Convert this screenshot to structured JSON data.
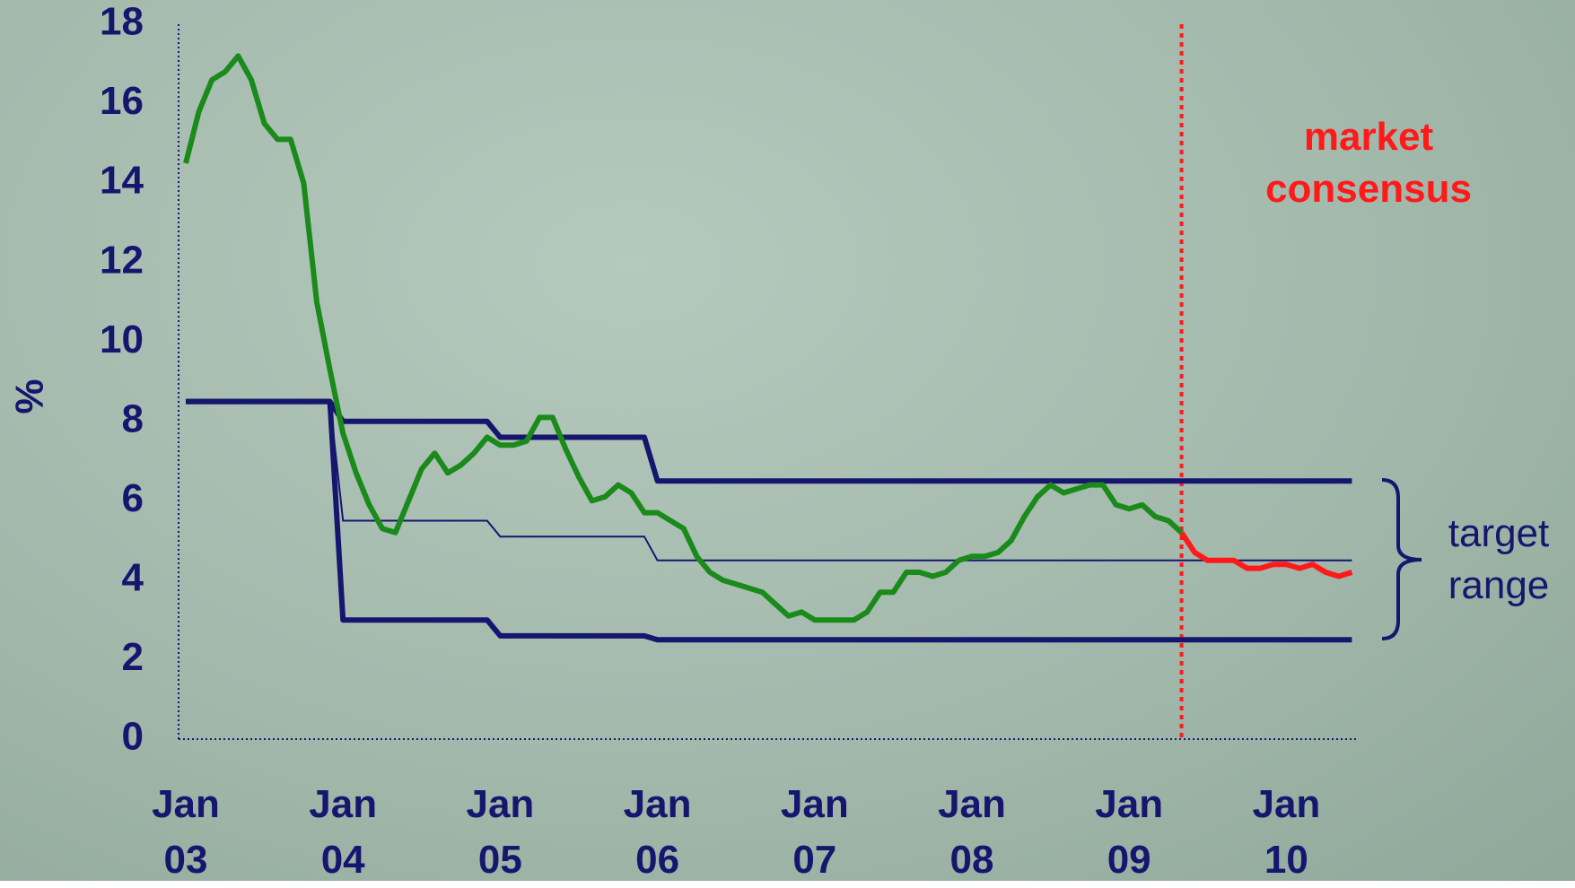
{
  "chart_data": {
    "type": "line",
    "y_label": "%",
    "x": [
      "2003-01",
      "2003-02",
      "2003-03",
      "2003-04",
      "2003-05",
      "2003-06",
      "2003-07",
      "2003-08",
      "2003-09",
      "2003-10",
      "2003-11",
      "2003-12",
      "2004-01",
      "2004-02",
      "2004-03",
      "2004-04",
      "2004-05",
      "2004-06",
      "2004-07",
      "2004-08",
      "2004-09",
      "2004-10",
      "2004-11",
      "2004-12",
      "2005-01",
      "2005-02",
      "2005-03",
      "2005-04",
      "2005-05",
      "2005-06",
      "2005-07",
      "2005-08",
      "2005-09",
      "2005-10",
      "2005-11",
      "2005-12",
      "2006-01",
      "2006-02",
      "2006-03",
      "2006-04",
      "2006-05",
      "2006-06",
      "2006-07",
      "2006-08",
      "2006-09",
      "2006-10",
      "2006-11",
      "2006-12",
      "2007-01",
      "2007-02",
      "2007-03",
      "2007-04",
      "2007-05",
      "2007-06",
      "2007-07",
      "2007-08",
      "2007-09",
      "2007-10",
      "2007-11",
      "2007-12",
      "2008-01",
      "2008-02",
      "2008-03",
      "2008-04",
      "2008-05",
      "2008-06",
      "2008-07",
      "2008-08",
      "2008-09",
      "2008-10",
      "2008-11",
      "2008-12",
      "2009-01",
      "2009-02",
      "2009-03",
      "2009-04",
      "2009-05",
      "2009-06",
      "2009-07",
      "2009-08",
      "2009-09",
      "2009-10",
      "2009-11",
      "2009-12",
      "2010-01",
      "2010-02",
      "2010-03",
      "2010-04",
      "2010-05",
      "2010-06"
    ],
    "series": [
      {
        "color": "#16166e",
        "width": 6,
        "values": [
          8.5,
          8.5,
          8.5,
          8.5,
          8.5,
          8.5,
          8.5,
          8.5,
          8.5,
          8.5,
          8.5,
          8.5,
          8,
          8,
          8,
          8,
          8,
          8,
          8,
          8,
          8,
          8,
          8,
          8,
          7.6,
          7.6,
          7.6,
          7.6,
          7.6,
          7.6,
          7.6,
          7.6,
          7.6,
          7.6,
          7.6,
          7.6,
          6.5,
          6.5,
          6.5,
          6.5,
          6.5,
          6.5,
          6.5,
          6.5,
          6.5,
          6.5,
          6.5,
          6.5,
          6.5,
          6.5,
          6.5,
          6.5,
          6.5,
          6.5,
          6.5,
          6.5,
          6.5,
          6.5,
          6.5,
          6.5,
          6.5,
          6.5,
          6.5,
          6.5,
          6.5,
          6.5,
          6.5,
          6.5,
          6.5,
          6.5,
          6.5,
          6.5,
          6.5,
          6.5,
          6.5,
          6.5,
          6.5,
          6.5,
          6.5,
          6.5,
          6.5,
          6.5,
          6.5,
          6.5,
          6.5,
          6.5,
          6.5,
          6.5,
          6.5,
          6.5
        ]
      },
      {
        "color": "#16166e",
        "width": 2,
        "values": [
          8.5,
          8.5,
          8.5,
          8.5,
          8.5,
          8.5,
          8.5,
          8.5,
          8.5,
          8.5,
          8.5,
          8.5,
          5.5,
          5.5,
          5.5,
          5.5,
          5.5,
          5.5,
          5.5,
          5.5,
          5.5,
          5.5,
          5.5,
          5.5,
          5.1,
          5.1,
          5.1,
          5.1,
          5.1,
          5.1,
          5.1,
          5.1,
          5.1,
          5.1,
          5.1,
          5.1,
          4.5,
          4.5,
          4.5,
          4.5,
          4.5,
          4.5,
          4.5,
          4.5,
          4.5,
          4.5,
          4.5,
          4.5,
          4.5,
          4.5,
          4.5,
          4.5,
          4.5,
          4.5,
          4.5,
          4.5,
          4.5,
          4.5,
          4.5,
          4.5,
          4.5,
          4.5,
          4.5,
          4.5,
          4.5,
          4.5,
          4.5,
          4.5,
          4.5,
          4.5,
          4.5,
          4.5,
          4.5,
          4.5,
          4.5,
          4.5,
          4.5,
          4.5,
          4.5,
          4.5,
          4.5,
          4.5,
          4.5,
          4.5,
          4.5,
          4.5,
          4.5,
          4.5,
          4.5,
          4.5
        ]
      },
      {
        "color": "#16166e",
        "width": 6,
        "values": [
          8.5,
          8.5,
          8.5,
          8.5,
          8.5,
          8.5,
          8.5,
          8.5,
          8.5,
          8.5,
          8.5,
          8.5,
          3,
          3,
          3,
          3,
          3,
          3,
          3,
          3,
          3,
          3,
          3,
          3,
          2.6,
          2.6,
          2.6,
          2.6,
          2.6,
          2.6,
          2.6,
          2.6,
          2.6,
          2.6,
          2.6,
          2.6,
          2.5,
          2.5,
          2.5,
          2.5,
          2.5,
          2.5,
          2.5,
          2.5,
          2.5,
          2.5,
          2.5,
          2.5,
          2.5,
          2.5,
          2.5,
          2.5,
          2.5,
          2.5,
          2.5,
          2.5,
          2.5,
          2.5,
          2.5,
          2.5,
          2.5,
          2.5,
          2.5,
          2.5,
          2.5,
          2.5,
          2.5,
          2.5,
          2.5,
          2.5,
          2.5,
          2.5,
          2.5,
          2.5,
          2.5,
          2.5,
          2.5,
          2.5,
          2.5,
          2.5,
          2.5,
          2.5,
          2.5,
          2.5,
          2.5,
          2.5,
          2.5,
          2.5,
          2.5,
          2.5
        ]
      },
      {
        "color": "#1a8a1a",
        "width": 6,
        "values": [
          14.5,
          15.8,
          16.6,
          16.8,
          17.2,
          16.6,
          15.5,
          15.1,
          15.1,
          14,
          11,
          9.3,
          7.7,
          6.7,
          5.9,
          5.3,
          5.2,
          6,
          6.8,
          7.2,
          6.7,
          6.9,
          7.2,
          7.6,
          7.4,
          7.4,
          7.5,
          8.1,
          8.1,
          7.3,
          6.6,
          6,
          6.1,
          6.4,
          6.2,
          5.7,
          5.7,
          5.5,
          5.3,
          4.6,
          4.2,
          4,
          3.9,
          3.8,
          3.7,
          3.4,
          3.1,
          3.2,
          3,
          3,
          3,
          3,
          3.2,
          3.7,
          3.7,
          4.2,
          4.2,
          4.1,
          4.2,
          4.5,
          4.6,
          4.6,
          4.7,
          5,
          5.6,
          6.1,
          6.4,
          6.2,
          6.3,
          6.4,
          6.4,
          5.9,
          5.8,
          5.9,
          5.6,
          5.5,
          5.2,
          null,
          null,
          null,
          null,
          null,
          null,
          null,
          null,
          null,
          null,
          null,
          null,
          null
        ]
      },
      {
        "color": "#ff1a1a",
        "width": 6,
        "values": [
          null,
          null,
          null,
          null,
          null,
          null,
          null,
          null,
          null,
          null,
          null,
          null,
          null,
          null,
          null,
          null,
          null,
          null,
          null,
          null,
          null,
          null,
          null,
          null,
          null,
          null,
          null,
          null,
          null,
          null,
          null,
          null,
          null,
          null,
          null,
          null,
          null,
          null,
          null,
          null,
          null,
          null,
          null,
          null,
          null,
          null,
          null,
          null,
          null,
          null,
          null,
          null,
          null,
          null,
          null,
          null,
          null,
          null,
          null,
          null,
          null,
          null,
          null,
          null,
          null,
          null,
          null,
          null,
          null,
          null,
          null,
          null,
          null,
          null,
          null,
          null,
          5.2,
          4.7,
          4.5,
          4.5,
          4.5,
          4.3,
          4.3,
          4.4,
          4.4,
          4.3,
          4.4,
          4.2,
          4.1,
          4.2
        ]
      }
    ],
    "ylim": [
      0,
      18
    ],
    "yticks": [
      0,
      2,
      4,
      6,
      8,
      10,
      12,
      14,
      16,
      18
    ],
    "grid": false,
    "xticks": [
      {
        "value": "2003-01",
        "label": "Jan 03"
      },
      {
        "value": "2004-01",
        "label": "Jan 04"
      },
      {
        "value": "2005-01",
        "label": "Jan 05"
      },
      {
        "value": "2006-01",
        "label": "Jan 06"
      },
      {
        "value": "2007-01",
        "label": "Jan 07"
      },
      {
        "value": "2008-01",
        "label": "Jan 08"
      },
      {
        "value": "2009-01",
        "label": "Jan 09"
      },
      {
        "value": "2010-01",
        "label": "Jan 10"
      }
    ],
    "vline": {
      "x": "2009-05",
      "color": "#ff1a1a"
    },
    "annotations": [
      {
        "text": "market consensus",
        "color": "#ff1a1a"
      },
      {
        "text": "target range",
        "color": "#16166e"
      }
    ]
  }
}
